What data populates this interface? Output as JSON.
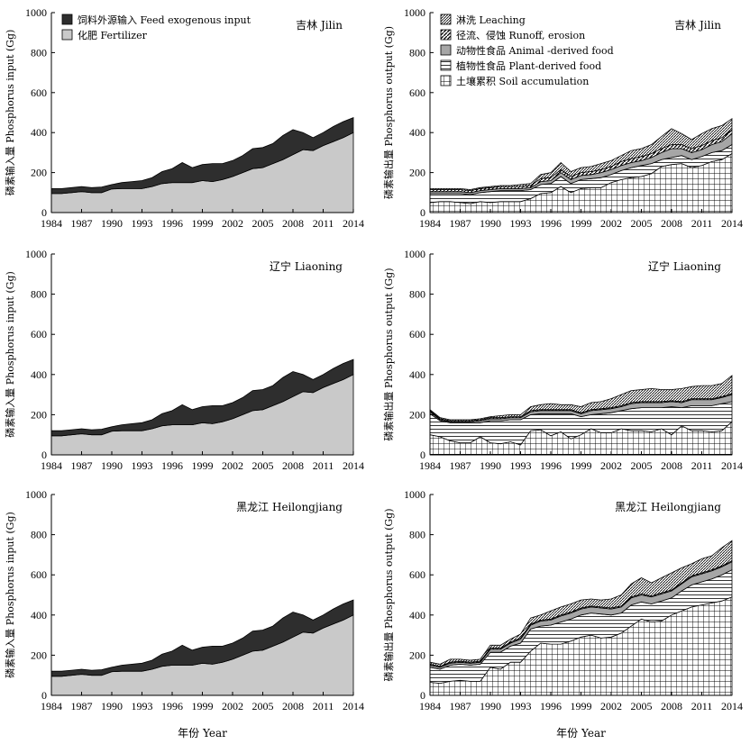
{
  "chart_data": [
    {
      "id": "jilin-input",
      "type": "area",
      "stacked": true,
      "region": "吉林 Jilin",
      "ylabel": "磷素输入量 Phosphorus input (Gg)",
      "xlabel": "",
      "ylim": [
        0,
        1000
      ],
      "yticks": [
        0,
        200,
        400,
        600,
        800,
        1000
      ],
      "xticks": [
        1984,
        1987,
        1990,
        1993,
        1996,
        1999,
        2002,
        2005,
        2008,
        2011,
        2014
      ],
      "x": [
        1984,
        1985,
        1986,
        1987,
        1988,
        1989,
        1990,
        1991,
        1992,
        1993,
        1994,
        1995,
        1996,
        1997,
        1998,
        1999,
        2000,
        2001,
        2002,
        2003,
        2004,
        2005,
        2006,
        2007,
        2008,
        2009,
        2010,
        2011,
        2012,
        2013,
        2014
      ],
      "legend": true,
      "series": [
        {
          "name": "化肥 Fertilizer",
          "fill": "#c9c9c9",
          "values": [
            95,
            95,
            100,
            105,
            100,
            100,
            118,
            120,
            120,
            120,
            130,
            145,
            150,
            150,
            150,
            160,
            155,
            165,
            180,
            200,
            220,
            225,
            245,
            265,
            290,
            315,
            310,
            335,
            355,
            375,
            400
          ]
        },
        {
          "name": "饲料外源输入 Feed exogenous input",
          "fill": "#2e2e2e",
          "values": [
            25,
            25,
            25,
            25,
            25,
            28,
            22,
            30,
            35,
            40,
            45,
            60,
            70,
            100,
            75,
            80,
            90,
            80,
            80,
            85,
            100,
            100,
            100,
            120,
            125,
            85,
            65,
            65,
            75,
            80,
            75
          ]
        }
      ]
    },
    {
      "id": "jilin-output",
      "type": "area",
      "stacked": true,
      "region": "吉林 Jilin",
      "ylabel": "磷素输出量 Phosphorus output (Gg)",
      "xlabel": "",
      "ylim": [
        0,
        1000
      ],
      "yticks": [
        0,
        200,
        400,
        600,
        800,
        1000
      ],
      "xticks": [
        1984,
        1987,
        1990,
        1993,
        1996,
        1999,
        2002,
        2005,
        2008,
        2011,
        2014
      ],
      "x": [
        1984,
        1985,
        1986,
        1987,
        1988,
        1989,
        1990,
        1991,
        1992,
        1993,
        1994,
        1995,
        1996,
        1997,
        1998,
        1999,
        2000,
        2001,
        2002,
        2003,
        2004,
        2005,
        2006,
        2007,
        2008,
        2009,
        2010,
        2011,
        2012,
        2013,
        2014
      ],
      "legend": true,
      "series": [
        {
          "name": "土壤累积 Soil accumulation",
          "fill": "pat-grid",
          "values": [
            50,
            55,
            55,
            50,
            45,
            55,
            50,
            55,
            55,
            55,
            70,
            95,
            100,
            130,
            100,
            120,
            125,
            125,
            150,
            165,
            175,
            180,
            195,
            230,
            240,
            245,
            225,
            235,
            255,
            265,
            295
          ]
        },
        {
          "name": "植物性食品 Plant-derived food",
          "fill": "pat-hlines",
          "values": [
            45,
            40,
            40,
            45,
            45,
            45,
            55,
            55,
            55,
            55,
            45,
            45,
            45,
            50,
            45,
            45,
            45,
            50,
            40,
            45,
            50,
            55,
            50,
            35,
            35,
            40,
            40,
            45,
            45,
            45,
            45
          ]
        },
        {
          "name": "动物性食品 Animal -derived food",
          "fill": "#a6a6a6",
          "values": [
            10,
            10,
            10,
            10,
            10,
            10,
            10,
            10,
            10,
            10,
            10,
            15,
            15,
            20,
            20,
            20,
            20,
            25,
            25,
            25,
            25,
            25,
            30,
            35,
            45,
            35,
            35,
            35,
            40,
            45,
            55
          ]
        },
        {
          "name": "径流、侵蚀 Runoff, erosion",
          "fill": "pat-diag",
          "values": [
            10,
            10,
            10,
            10,
            10,
            10,
            10,
            10,
            10,
            10,
            10,
            15,
            15,
            15,
            15,
            15,
            15,
            15,
            15,
            20,
            20,
            20,
            20,
            20,
            20,
            20,
            20,
            20,
            20,
            20,
            20
          ]
        },
        {
          "name": "淋洗 Leaching",
          "fill": "pat-fine",
          "values": [
            5,
            5,
            5,
            5,
            5,
            5,
            5,
            5,
            5,
            10,
            10,
            20,
            25,
            35,
            25,
            25,
            25,
            30,
            30,
            30,
            40,
            40,
            45,
            60,
            80,
            55,
            45,
            60,
            60,
            60,
            55
          ]
        }
      ]
    },
    {
      "id": "liaoning-input",
      "type": "area",
      "stacked": true,
      "region": "辽宁 Liaoning",
      "ylabel": "磷素输入量 Phosphorus input (Gg)",
      "xlabel": "",
      "ylim": [
        0,
        1000
      ],
      "yticks": [
        0,
        200,
        400,
        600,
        800,
        1000
      ],
      "xticks": [
        1984,
        1987,
        1990,
        1993,
        1996,
        1999,
        2002,
        2005,
        2008,
        2011,
        2014
      ],
      "x": [
        1984,
        1985,
        1986,
        1987,
        1988,
        1989,
        1990,
        1991,
        1992,
        1993,
        1994,
        1995,
        1996,
        1997,
        1998,
        1999,
        2000,
        2001,
        2002,
        2003,
        2004,
        2005,
        2006,
        2007,
        2008,
        2009,
        2010,
        2011,
        2012,
        2013,
        2014
      ],
      "legend": false,
      "series": [
        {
          "name": "化肥 Fertilizer",
          "fill": "#c9c9c9",
          "values": [
            95,
            95,
            100,
            105,
            100,
            100,
            118,
            120,
            120,
            120,
            130,
            145,
            150,
            150,
            150,
            160,
            155,
            165,
            180,
            200,
            220,
            225,
            245,
            265,
            290,
            315,
            310,
            335,
            355,
            375,
            400
          ]
        },
        {
          "name": "饲料外源输入 Feed exogenous input",
          "fill": "#2e2e2e",
          "values": [
            25,
            25,
            25,
            25,
            25,
            28,
            22,
            30,
            35,
            40,
            45,
            60,
            70,
            100,
            75,
            80,
            90,
            80,
            80,
            85,
            100,
            100,
            100,
            120,
            125,
            85,
            65,
            65,
            75,
            80,
            75
          ]
        }
      ]
    },
    {
      "id": "liaoning-output",
      "type": "area",
      "stacked": true,
      "region": "辽宁 Liaoning",
      "ylabel": "磷素输出量 Phosphorus output (Gg)",
      "xlabel": "",
      "ylim": [
        0,
        1000
      ],
      "yticks": [
        0,
        200,
        400,
        600,
        800,
        1000
      ],
      "xticks": [
        1984,
        1987,
        1990,
        1993,
        1996,
        1999,
        2002,
        2005,
        2008,
        2011,
        2014
      ],
      "x": [
        1984,
        1985,
        1986,
        1987,
        1988,
        1989,
        1990,
        1991,
        1992,
        1993,
        1994,
        1995,
        1996,
        1997,
        1998,
        1999,
        2000,
        2001,
        2002,
        2003,
        2004,
        2005,
        2006,
        2007,
        2008,
        2009,
        2010,
        2011,
        2012,
        2013,
        2014
      ],
      "legend": false,
      "series": [
        {
          "name": "土壤累积 Soil accumulation",
          "fill": "pat-grid",
          "values": [
            100,
            90,
            70,
            60,
            60,
            90,
            60,
            55,
            65,
            50,
            120,
            125,
            95,
            115,
            80,
            100,
            130,
            110,
            110,
            130,
            120,
            120,
            115,
            130,
            100,
            145,
            120,
            120,
            115,
            120,
            165
          ]
        },
        {
          "name": "植物性食品 Plant-derived food",
          "fill": "pat-hlines",
          "values": [
            105,
            80,
            90,
            100,
            100,
            70,
            110,
            115,
            110,
            125,
            80,
            80,
            110,
            90,
            125,
            90,
            70,
            95,
            100,
            90,
            110,
            115,
            120,
            105,
            140,
            90,
            125,
            125,
            130,
            135,
            100
          ]
        },
        {
          "name": "动物性食品 Animal -derived food",
          "fill": "#a6a6a6",
          "values": [
            10,
            5,
            5,
            5,
            5,
            10,
            10,
            10,
            10,
            10,
            15,
            15,
            15,
            15,
            15,
            15,
            20,
            20,
            20,
            20,
            25,
            25,
            25,
            25,
            25,
            25,
            30,
            30,
            30,
            30,
            35
          ]
        },
        {
          "name": "径流、侵蚀 Runoff, erosion",
          "fill": "pat-diag",
          "values": [
            5,
            5,
            5,
            5,
            5,
            5,
            5,
            5,
            5,
            5,
            5,
            5,
            5,
            5,
            5,
            5,
            5,
            5,
            5,
            5,
            5,
            5,
            5,
            5,
            5,
            5,
            5,
            5,
            5,
            5,
            5
          ]
        },
        {
          "name": "淋洗 Leaching",
          "fill": "pat-fine",
          "values": [
            5,
            5,
            5,
            5,
            5,
            5,
            5,
            10,
            10,
            10,
            20,
            25,
            30,
            25,
            25,
            30,
            35,
            35,
            45,
            55,
            60,
            60,
            65,
            60,
            55,
            65,
            60,
            65,
            65,
            65,
            90
          ]
        }
      ]
    },
    {
      "id": "heilongjiang-input",
      "type": "area",
      "stacked": true,
      "region": "黑龙江 Heilongjiang",
      "ylabel": "磷素输入量 Phosphorus input (Gg)",
      "xlabel": "年份 Year",
      "ylim": [
        0,
        1000
      ],
      "yticks": [
        0,
        200,
        400,
        600,
        800,
        1000
      ],
      "xticks": [
        1984,
        1987,
        1990,
        1993,
        1996,
        1999,
        2002,
        2005,
        2008,
        2011,
        2014
      ],
      "x": [
        1984,
        1985,
        1986,
        1987,
        1988,
        1989,
        1990,
        1991,
        1992,
        1993,
        1994,
        1995,
        1996,
        1997,
        1998,
        1999,
        2000,
        2001,
        2002,
        2003,
        2004,
        2005,
        2006,
        2007,
        2008,
        2009,
        2010,
        2011,
        2012,
        2013,
        2014
      ],
      "legend": false,
      "series": [
        {
          "name": "化肥 Fertilizer",
          "fill": "#c9c9c9",
          "values": [
            95,
            95,
            100,
            105,
            100,
            100,
            118,
            120,
            120,
            120,
            130,
            145,
            150,
            150,
            150,
            160,
            155,
            165,
            180,
            200,
            220,
            225,
            245,
            265,
            290,
            315,
            310,
            335,
            355,
            375,
            400
          ]
        },
        {
          "name": "饲料外源输入 Feed exogenous input",
          "fill": "#2e2e2e",
          "values": [
            25,
            25,
            25,
            25,
            25,
            28,
            22,
            30,
            35,
            40,
            45,
            60,
            70,
            100,
            75,
            80,
            90,
            80,
            80,
            85,
            100,
            100,
            100,
            120,
            125,
            85,
            65,
            65,
            75,
            80,
            75
          ]
        }
      ]
    },
    {
      "id": "heilongjiang-output",
      "type": "area",
      "stacked": true,
      "region": "黑龙江 Heilongjiang",
      "ylabel": "磷素输出量 Phosphorus output (Gg)",
      "xlabel": "年份 Year",
      "ylim": [
        0,
        1000
      ],
      "yticks": [
        0,
        200,
        400,
        600,
        800,
        1000
      ],
      "xticks": [
        1984,
        1987,
        1990,
        1993,
        1996,
        1999,
        2002,
        2005,
        2008,
        2011,
        2014
      ],
      "x": [
        1984,
        1985,
        1986,
        1987,
        1988,
        1989,
        1990,
        1991,
        1992,
        1993,
        1994,
        1995,
        1996,
        1997,
        1998,
        1999,
        2000,
        2001,
        2002,
        2003,
        2004,
        2005,
        2006,
        2007,
        2008,
        2009,
        2010,
        2011,
        2012,
        2013,
        2014
      ],
      "legend": false,
      "series": [
        {
          "name": "土壤累积 Soil accumulation",
          "fill": "pat-grid",
          "values": [
            65,
            60,
            70,
            75,
            70,
            70,
            140,
            130,
            165,
            165,
            220,
            260,
            255,
            255,
            270,
            290,
            300,
            285,
            290,
            310,
            345,
            380,
            365,
            370,
            400,
            420,
            440,
            450,
            460,
            470,
            490
          ]
        },
        {
          "name": "植物性食品 Plant-derived food",
          "fill": "pat-hlines",
          "values": [
            75,
            70,
            80,
            80,
            80,
            85,
            75,
            85,
            80,
            95,
            110,
            85,
            95,
            110,
            110,
            110,
            110,
            120,
            110,
            100,
            105,
            85,
            90,
            100,
            85,
            100,
            110,
            115,
            120,
            130,
            135
          ]
        },
        {
          "name": "动物性食品 Animal -derived food",
          "fill": "#a6a6a6",
          "values": [
            10,
            10,
            10,
            10,
            10,
            10,
            15,
            15,
            15,
            20,
            20,
            25,
            25,
            30,
            30,
            30,
            30,
            30,
            30,
            30,
            35,
            35,
            35,
            35,
            35,
            35,
            40,
            40,
            40,
            40,
            40
          ]
        },
        {
          "name": "径流、侵蚀 Runoff, erosion",
          "fill": "pat-diag",
          "values": [
            5,
            5,
            5,
            5,
            5,
            5,
            5,
            5,
            5,
            5,
            5,
            5,
            5,
            5,
            5,
            5,
            5,
            5,
            5,
            5,
            5,
            5,
            5,
            5,
            5,
            5,
            5,
            5,
            5,
            5,
            5
          ]
        },
        {
          "name": "淋洗 Leaching",
          "fill": "pat-fine",
          "values": [
            10,
            10,
            15,
            10,
            10,
            10,
            15,
            15,
            15,
            20,
            30,
            25,
            40,
            40,
            40,
            40,
            35,
            35,
            45,
            55,
            65,
            80,
            65,
            75,
            85,
            75,
            60,
            70,
            70,
            90,
            100
          ]
        }
      ]
    }
  ]
}
